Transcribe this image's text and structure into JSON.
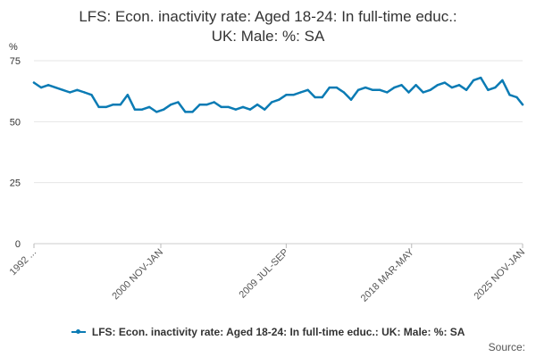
{
  "chart_data": {
    "type": "line",
    "title_lines": [
      "LFS: Econ. inactivity rate: Aged 18-24: In full-time educ.:",
      "UK: Male: %: SA"
    ],
    "ylabel": "%",
    "ylim": [
      0,
      75
    ],
    "yticks": [
      "0",
      "25",
      "50",
      "75"
    ],
    "xtick_labels": [
      "1992 ...",
      "2000 NOV-JAN",
      "2009 JUL-SEP",
      "2018 MAR-MAY",
      "2025 NOV-JAN"
    ],
    "xtick_years": [
      1992.0,
      2000.8,
      2009.5,
      2018.2,
      2025.9
    ],
    "grid": "horizontal",
    "legend_position": "bottom",
    "color": "#0b7bb4",
    "series": [
      {
        "name": "LFS: Econ. inactivity rate: Aged 18-24: In full-time educ.: UK: Male: %: SA",
        "x": [
          1992.0,
          1992.5,
          1993.0,
          1993.5,
          1994.0,
          1994.5,
          1995.0,
          1995.5,
          1996.0,
          1996.5,
          1997.0,
          1997.5,
          1998.0,
          1998.5,
          1999.0,
          1999.5,
          2000.0,
          2000.5,
          2001.0,
          2001.5,
          2002.0,
          2002.5,
          2003.0,
          2003.5,
          2004.0,
          2004.5,
          2005.0,
          2005.5,
          2006.0,
          2006.5,
          2007.0,
          2007.5,
          2008.0,
          2008.5,
          2009.0,
          2009.5,
          2010.0,
          2010.5,
          2011.0,
          2011.5,
          2012.0,
          2012.5,
          2013.0,
          2013.5,
          2014.0,
          2014.5,
          2015.0,
          2015.5,
          2016.0,
          2016.5,
          2017.0,
          2017.5,
          2018.0,
          2018.5,
          2019.0,
          2019.5,
          2020.0,
          2020.5,
          2021.0,
          2021.5,
          2022.0,
          2022.5,
          2023.0,
          2023.5,
          2024.0,
          2024.5,
          2025.0,
          2025.5,
          2025.9
        ],
        "values": [
          66,
          64,
          65,
          64,
          63,
          62,
          63,
          62,
          61,
          56,
          56,
          57,
          57,
          61,
          55,
          55,
          56,
          54,
          55,
          57,
          58,
          54,
          54,
          57,
          57,
          58,
          56,
          56,
          55,
          56,
          55,
          57,
          55,
          58,
          59,
          61,
          61,
          62,
          63,
          60,
          60,
          64,
          64,
          62,
          59,
          63,
          64,
          63,
          63,
          62,
          64,
          65,
          62,
          65,
          62,
          63,
          65,
          66,
          64,
          65,
          63,
          67,
          68,
          63,
          64,
          67,
          61,
          60,
          57
        ]
      }
    ]
  },
  "legend": {
    "label": "LFS: Econ. inactivity rate: Aged 18-24: In full-time educ.: UK: Male: %: SA"
  },
  "footer": {
    "source": "Source:"
  }
}
